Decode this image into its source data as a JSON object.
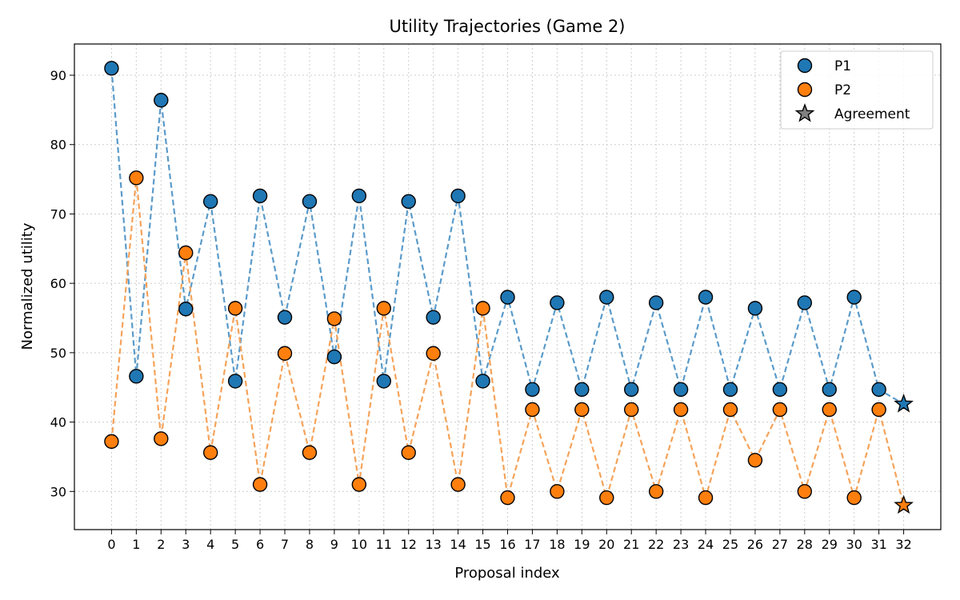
{
  "chart_data": {
    "type": "line",
    "title": "Utility Trajectories (Game 2)",
    "xlabel": "Proposal index",
    "ylabel": "Normalized utility",
    "x": [
      0,
      1,
      2,
      3,
      4,
      5,
      6,
      7,
      8,
      9,
      10,
      11,
      12,
      13,
      14,
      15,
      16,
      17,
      18,
      19,
      20,
      21,
      22,
      23,
      24,
      25,
      26,
      27,
      28,
      29,
      30,
      31
    ],
    "xlim": [
      -1.5,
      33.5
    ],
    "ylim": [
      24.5,
      94.5
    ],
    "xticks": [
      "0",
      "1",
      "2",
      "3",
      "4",
      "5",
      "6",
      "7",
      "8",
      "9",
      "10",
      "11",
      "12",
      "13",
      "14",
      "15",
      "16",
      "17",
      "18",
      "19",
      "20",
      "21",
      "22",
      "23",
      "24",
      "25",
      "26",
      "27",
      "28",
      "29",
      "30",
      "31",
      "32"
    ],
    "yticks": [
      "30",
      "40",
      "50",
      "60",
      "70",
      "80",
      "90"
    ],
    "grid": true,
    "legend_position": "top-right",
    "series": [
      {
        "name": "P1",
        "color": "#1f77b4",
        "line_color": "#5b9bc9",
        "values": [
          91.0,
          46.6,
          86.4,
          56.3,
          71.8,
          45.9,
          72.6,
          55.1,
          71.8,
          49.4,
          72.6,
          45.9,
          71.8,
          55.1,
          72.6,
          45.9,
          58.0,
          44.7,
          57.2,
          44.7,
          58.0,
          44.7,
          57.2,
          44.7,
          58.0,
          44.7,
          56.4,
          44.7,
          57.2,
          44.7,
          58.0,
          44.7
        ],
        "agreement": {
          "x": 32,
          "y": 42.6
        }
      },
      {
        "name": "P2",
        "color": "#ff7f0e",
        "line_color": "#f5a35a",
        "values": [
          37.2,
          75.2,
          37.6,
          64.4,
          35.6,
          56.4,
          31.0,
          49.9,
          35.6,
          54.9,
          31.0,
          56.4,
          35.6,
          49.9,
          31.0,
          56.4,
          29.1,
          41.8,
          30.0,
          41.8,
          29.1,
          41.8,
          30.0,
          41.8,
          29.1,
          41.8,
          34.5,
          41.8,
          30.0,
          41.8,
          29.1,
          41.8
        ],
        "agreement": {
          "x": 32,
          "y": 28.0
        }
      }
    ],
    "legend": [
      {
        "label": "P1",
        "marker": "circle",
        "color": "#1f77b4"
      },
      {
        "label": "P2",
        "marker": "circle",
        "color": "#ff7f0e"
      },
      {
        "label": "Agreement",
        "marker": "star",
        "color": "#808080"
      }
    ]
  }
}
